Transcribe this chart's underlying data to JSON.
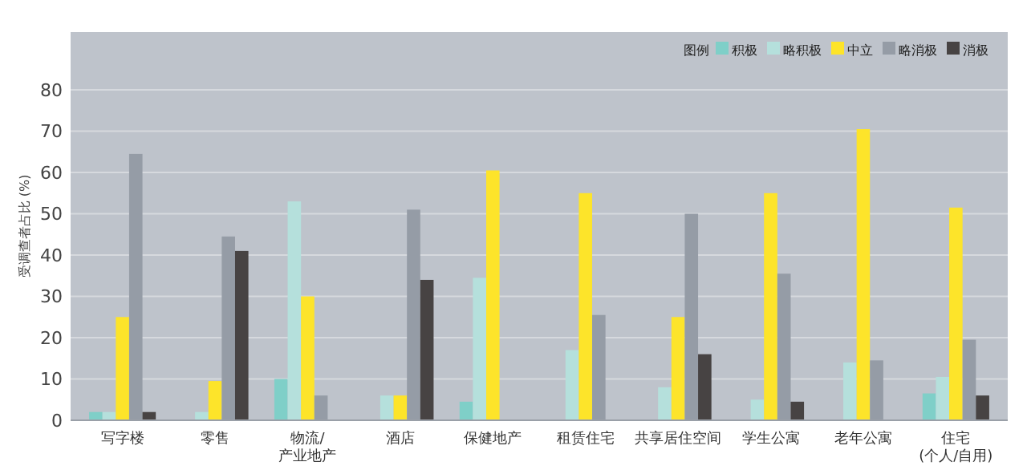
{
  "chart_data": {
    "type": "bar",
    "ylabel": "受调查者占比 (%)",
    "legend_title": "图例",
    "legend": "top right",
    "grid": "y",
    "categories": [
      "写字楼",
      "零售",
      "物流/\n产业地产",
      "酒店",
      "保健地产",
      "租赁住宅",
      "共享居住空间",
      "学生公寓",
      "老年公寓",
      "住宅\n(个人/自用)"
    ],
    "ylim": [
      0,
      94
    ],
    "yticks": [
      0,
      10,
      20,
      30,
      40,
      50,
      60,
      70,
      80
    ],
    "series": [
      {
        "name": "积极",
        "color": "#7fcfc8",
        "values": [
          2,
          0,
          10,
          0,
          4.5,
          0,
          0,
          0,
          0,
          6.5
        ]
      },
      {
        "name": "略积极",
        "color": "#b5e0dc",
        "values": [
          2,
          2,
          53,
          6,
          34.5,
          17,
          8,
          5,
          14,
          10.5
        ]
      },
      {
        "name": "中立",
        "color": "#fde42a",
        "values": [
          25,
          9.5,
          30,
          6,
          60.5,
          55,
          25,
          55,
          70.5,
          51.5
        ]
      },
      {
        "name": "略消极",
        "color": "#959ca6",
        "values": [
          64.5,
          44.5,
          6,
          51,
          0,
          25.5,
          50,
          35.5,
          14.5,
          19.5
        ]
      },
      {
        "name": "消极",
        "color": "#474343",
        "values": [
          2,
          41,
          0,
          34,
          0,
          0,
          16,
          4.5,
          0,
          6
        ]
      }
    ]
  }
}
